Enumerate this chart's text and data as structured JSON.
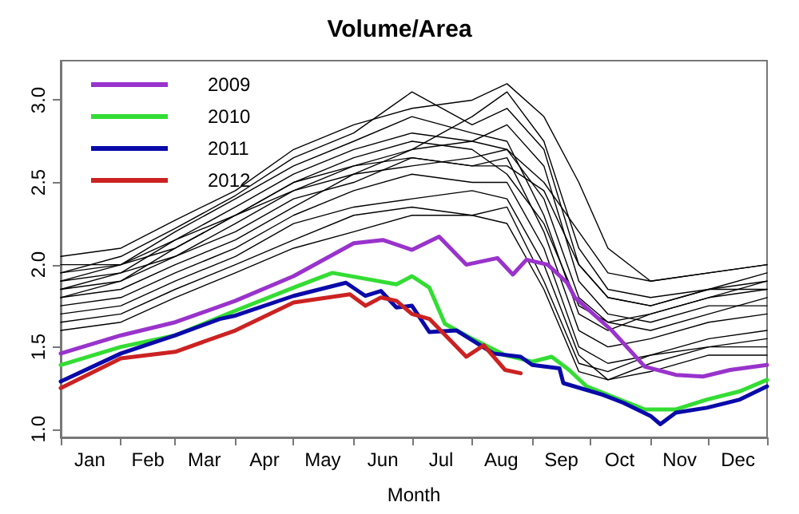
{
  "chart_data": {
    "type": "line",
    "title": "Volume/Area",
    "xlabel": "Month",
    "xlim": [
      "--01-01",
      "--12-31"
    ],
    "xticks": [
      {
        "value": "--01-01",
        "label": null
      },
      {
        "value": "--02-01",
        "label": null
      },
      {
        "value": "--03-01",
        "label": null
      },
      {
        "value": "--04-01",
        "label": null
      },
      {
        "value": "--05-01",
        "label": null
      },
      {
        "value": "--06-01",
        "label": null
      },
      {
        "value": "--07-01",
        "label": null
      },
      {
        "value": "--08-01",
        "label": null
      },
      {
        "value": "--09-01",
        "label": null
      },
      {
        "value": "--10-01",
        "label": null
      },
      {
        "value": "--11-01",
        "label": null
      },
      {
        "value": "--12-01",
        "label": null
      },
      {
        "value": "--12-31",
        "label": null
      },
      {
        "value": "--01-16",
        "label": "Jan"
      },
      {
        "value": "--02-15",
        "label": "Feb"
      },
      {
        "value": "--03-16",
        "label": "Mar"
      },
      {
        "value": "--04-16",
        "label": "Apr"
      },
      {
        "value": "--05-16",
        "label": "May"
      },
      {
        "value": "--06-16",
        "label": "Jun"
      },
      {
        "value": "--07-16",
        "label": "Jul"
      },
      {
        "value": "--08-16",
        "label": "Aug"
      },
      {
        "value": "--09-16",
        "label": "Sep"
      },
      {
        "value": "--10-16",
        "label": "Oct"
      },
      {
        "value": "--11-16",
        "label": "Nov"
      },
      {
        "value": "--12-16",
        "label": "Dec"
      }
    ],
    "ylim": [
      0.95,
      3.24
    ],
    "yticks": [
      {
        "value": 1,
        "label": "1.0"
      },
      1.5,
      {
        "value": 2,
        "label": "2.0"
      },
      2.5,
      {
        "value": 3,
        "label": "3.0"
      }
    ],
    "grid": false,
    "legend": "top left",
    "series": [
      {
        "color": "#000000",
        "x": [
          "--01-01",
          "--02-01",
          "--03-01",
          "--04-01",
          "--05-01",
          "--06-01",
          "--07-01",
          "--08-01",
          "--08-19",
          "--09-07",
          "--09-25",
          "--10-10",
          "--11-01",
          "--12-01",
          "--12-31"
        ],
        "values": [
          2.05,
          2.1,
          2.27,
          2.45,
          2.7,
          2.85,
          2.95,
          3.0,
          3.1,
          2.9,
          2.5,
          2.1,
          1.9,
          1.95,
          2.0
        ]
      },
      {
        "color": "#000000",
        "x": [
          "--01-01",
          "--02-01",
          "--03-01",
          "--04-01",
          "--05-01",
          "--06-01",
          "--07-01",
          "--08-01",
          "--08-19",
          "--09-07",
          "--09-25",
          "--10-10",
          "--11-01",
          "--12-01",
          "--12-31"
        ],
        "values": [
          1.95,
          2.05,
          2.22,
          2.42,
          2.65,
          2.8,
          3.05,
          2.85,
          2.95,
          2.7,
          2.0,
          1.8,
          1.75,
          1.85,
          1.9
        ]
      },
      {
        "color": "#000000",
        "x": [
          "--01-01",
          "--02-01",
          "--03-01",
          "--04-01",
          "--05-01",
          "--06-01",
          "--07-01",
          "--08-01",
          "--08-19",
          "--09-07",
          "--09-25",
          "--10-10",
          "--11-01",
          "--12-01",
          "--12-31"
        ],
        "values": [
          1.9,
          2.0,
          2.2,
          2.4,
          2.6,
          2.75,
          2.9,
          2.8,
          2.75,
          2.3,
          1.7,
          1.6,
          1.7,
          1.8,
          1.85
        ]
      },
      {
        "color": "#000000",
        "x": [
          "--01-01",
          "--02-01",
          "--03-01",
          "--04-01",
          "--05-01",
          "--06-01",
          "--07-01",
          "--08-01",
          "--08-19",
          "--09-07",
          "--09-25",
          "--10-10",
          "--11-01",
          "--12-01",
          "--12-31"
        ],
        "values": [
          1.85,
          1.95,
          2.15,
          2.35,
          2.55,
          2.7,
          2.8,
          2.75,
          2.7,
          2.4,
          1.8,
          1.65,
          1.6,
          1.7,
          1.8
        ]
      },
      {
        "color": "#000000",
        "x": [
          "--01-01",
          "--02-01",
          "--03-01",
          "--04-01",
          "--05-01",
          "--06-01",
          "--07-01",
          "--08-01",
          "--08-19",
          "--09-07",
          "--09-25",
          "--10-10",
          "--11-01",
          "--12-01",
          "--12-31"
        ],
        "values": [
          1.8,
          1.9,
          2.1,
          2.3,
          2.5,
          2.6,
          2.7,
          2.75,
          2.85,
          2.6,
          1.9,
          1.7,
          1.65,
          1.75,
          1.75
        ]
      },
      {
        "color": "#000000",
        "x": [
          "--01-01",
          "--02-01",
          "--03-01",
          "--04-01",
          "--05-01",
          "--06-01",
          "--07-01",
          "--08-01",
          "--08-19",
          "--09-07",
          "--09-25",
          "--10-10",
          "--11-01",
          "--12-01",
          "--12-31"
        ],
        "values": [
          1.9,
          1.95,
          2.05,
          2.25,
          2.45,
          2.6,
          2.65,
          2.6,
          2.65,
          2.2,
          1.6,
          1.5,
          1.55,
          1.65,
          1.7
        ]
      },
      {
        "color": "#000000",
        "x": [
          "--01-01",
          "--02-01",
          "--03-01",
          "--04-01",
          "--05-01",
          "--06-01",
          "--07-01",
          "--08-01",
          "--08-19",
          "--09-07",
          "--09-25",
          "--10-10",
          "--11-01",
          "--12-01",
          "--12-31"
        ],
        "values": [
          2.0,
          2.0,
          2.15,
          2.3,
          2.5,
          2.65,
          2.75,
          2.7,
          2.55,
          2.25,
          1.75,
          1.65,
          1.7,
          1.8,
          1.9
        ]
      },
      {
        "color": "#000000",
        "x": [
          "--01-01",
          "--02-01",
          "--03-01",
          "--04-01",
          "--05-01",
          "--06-01",
          "--07-01",
          "--08-01",
          "--08-19",
          "--09-07",
          "--09-25",
          "--10-10",
          "--11-01",
          "--12-01",
          "--12-31"
        ],
        "values": [
          1.75,
          1.8,
          1.95,
          2.1,
          2.3,
          2.45,
          2.55,
          2.5,
          2.5,
          2.1,
          1.5,
          1.4,
          1.45,
          1.55,
          1.6
        ]
      },
      {
        "color": "#000000",
        "x": [
          "--01-01",
          "--02-01",
          "--03-01",
          "--04-01",
          "--05-01",
          "--06-01",
          "--07-01",
          "--08-01",
          "--08-19",
          "--09-07",
          "--09-25",
          "--10-10",
          "--11-01",
          "--12-01",
          "--12-31"
        ],
        "values": [
          1.7,
          1.75,
          1.9,
          2.05,
          2.25,
          2.35,
          2.4,
          2.45,
          2.4,
          2.0,
          1.45,
          1.3,
          1.4,
          1.5,
          1.55
        ]
      },
      {
        "color": "#000000",
        "x": [
          "--01-01",
          "--02-01",
          "--03-01",
          "--04-01",
          "--05-01",
          "--06-01",
          "--07-01",
          "--08-01",
          "--08-19",
          "--09-07",
          "--09-25",
          "--10-10",
          "--11-01",
          "--12-01",
          "--12-31"
        ],
        "values": [
          1.65,
          1.7,
          1.85,
          2.0,
          2.15,
          2.3,
          2.35,
          2.3,
          2.35,
          1.9,
          1.4,
          1.35,
          1.45,
          1.5,
          1.5
        ]
      },
      {
        "color": "#000000",
        "x": [
          "--01-01",
          "--02-01",
          "--03-01",
          "--04-01",
          "--05-01",
          "--06-01",
          "--07-01",
          "--08-01",
          "--08-19",
          "--09-07",
          "--09-25",
          "--10-10",
          "--11-01",
          "--12-01",
          "--12-31"
        ],
        "values": [
          1.6,
          1.65,
          1.8,
          1.95,
          2.1,
          2.2,
          2.3,
          2.3,
          2.25,
          1.85,
          1.35,
          1.3,
          1.35,
          1.45,
          1.45
        ]
      },
      {
        "color": "#000000",
        "x": [
          "--01-01",
          "--02-01",
          "--03-01",
          "--04-01",
          "--05-01",
          "--06-01",
          "--07-01",
          "--08-01",
          "--08-19",
          "--09-07",
          "--09-25",
          "--10-10",
          "--11-01",
          "--12-01",
          "--12-31"
        ],
        "values": [
          1.85,
          1.9,
          2.05,
          2.2,
          2.4,
          2.5,
          2.65,
          2.6,
          2.6,
          2.45,
          2.0,
          1.8,
          1.75,
          1.85,
          1.95
        ]
      },
      {
        "color": "#000000",
        "x": [
          "--01-01",
          "--02-01",
          "--03-01",
          "--04-01",
          "--05-01",
          "--06-01",
          "--07-01",
          "--08-01",
          "--08-19",
          "--09-07",
          "--09-25",
          "--10-10",
          "--11-01",
          "--12-01",
          "--12-31"
        ],
        "values": [
          1.8,
          1.85,
          2.0,
          2.15,
          2.35,
          2.55,
          2.7,
          2.9,
          3.05,
          2.75,
          2.1,
          1.85,
          1.8,
          1.85,
          1.85
        ]
      },
      {
        "color": "#000000",
        "x": [
          "--01-01",
          "--02-01",
          "--03-01",
          "--04-01",
          "--05-01",
          "--06-01",
          "--07-01",
          "--08-01",
          "--08-19",
          "--09-07",
          "--09-25",
          "--10-10",
          "--11-01",
          "--12-01",
          "--12-31"
        ],
        "values": [
          1.95,
          2.0,
          2.1,
          2.3,
          2.45,
          2.55,
          2.6,
          2.65,
          2.7,
          2.5,
          2.2,
          1.95,
          1.9,
          1.95,
          2.0
        ]
      },
      {
        "name": "2009",
        "color": "#9933cc",
        "x": [
          "--01-01",
          "--02-01",
          "--03-01",
          "--04-01",
          "--05-01",
          "--06-01",
          "--06-16",
          "--07-01",
          "--07-15",
          "--07-29",
          "--08-14",
          "--08-22",
          "--08-29",
          "--09-09",
          "--09-19",
          "--09-23",
          "--10-12",
          "--10-29",
          "--11-14",
          "--11-28",
          "--12-12",
          "--12-31"
        ],
        "values": [
          1.46,
          1.57,
          1.65,
          1.78,
          1.93,
          2.13,
          2.15,
          2.09,
          2.17,
          2.0,
          2.04,
          1.94,
          2.03,
          2.0,
          1.89,
          1.8,
          1.6,
          1.38,
          1.33,
          1.32,
          1.36,
          1.39
        ]
      },
      {
        "name": "2010",
        "color": "#33dd33",
        "x": [
          "--01-01",
          "--02-01",
          "--03-01",
          "--04-01",
          "--05-01",
          "--05-21",
          "--06-09",
          "--06-23",
          "--07-01",
          "--07-10",
          "--07-18",
          "--08-01",
          "--08-18",
          "--09-01",
          "--09-11",
          "--09-20",
          "--09-29",
          "--10-16",
          "--10-29",
          "--11-14",
          "--11-30",
          "--12-17",
          "--12-31"
        ],
        "values": [
          1.39,
          1.5,
          1.57,
          1.72,
          1.86,
          1.95,
          1.91,
          1.88,
          1.93,
          1.86,
          1.64,
          1.55,
          1.45,
          1.41,
          1.44,
          1.36,
          1.26,
          1.18,
          1.12,
          1.12,
          1.18,
          1.23,
          1.3
        ]
      },
      {
        "name": "2011",
        "color": "#0a0aaa",
        "x": [
          "--01-01",
          "--02-01",
          "--03-01",
          "--03-24",
          "--04-01",
          "--05-01",
          "--05-28",
          "--06-07",
          "--06-15",
          "--06-23",
          "--07-01",
          "--07-10",
          "--07-24",
          "--08-12",
          "--08-26",
          "--09-01",
          "--09-15",
          "--09-17",
          "--10-07",
          "--10-18",
          "--11-01",
          "--11-06",
          "--11-14",
          "--11-30",
          "--12-17",
          "--12-31"
        ],
        "values": [
          1.29,
          1.46,
          1.57,
          1.67,
          1.69,
          1.81,
          1.89,
          1.81,
          1.84,
          1.74,
          1.75,
          1.59,
          1.6,
          1.46,
          1.44,
          1.39,
          1.37,
          1.28,
          1.21,
          1.16,
          1.08,
          1.03,
          1.1,
          1.13,
          1.18,
          1.26
        ]
      },
      {
        "name": "2012",
        "color": "#cc2222",
        "x": [
          "--01-01",
          "--02-01",
          "--03-01",
          "--04-01",
          "--05-01",
          "--05-30",
          "--06-07",
          "--06-15",
          "--06-23",
          "--07-01",
          "--07-10",
          "--07-29",
          "--08-07",
          "--08-18",
          "--08-26"
        ],
        "values": [
          1.25,
          1.43,
          1.47,
          1.6,
          1.77,
          1.82,
          1.75,
          1.8,
          1.78,
          1.7,
          1.67,
          1.44,
          1.51,
          1.36,
          1.34
        ]
      }
    ]
  }
}
